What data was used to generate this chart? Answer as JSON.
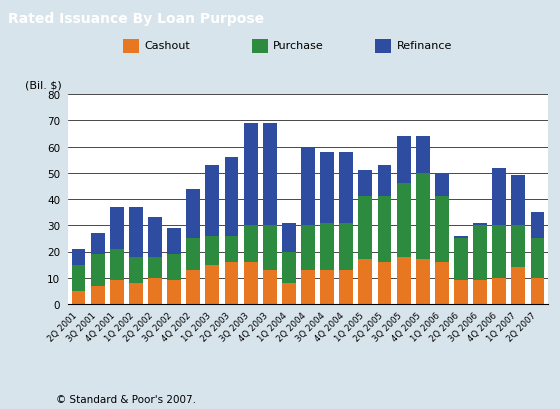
{
  "title": "Rated Issuance By Loan Purpose",
  "ylabel": "(Bil. $)",
  "footnote": "© Standard & Poor's 2007.",
  "categories": [
    "2Q 2001",
    "3Q 2001",
    "4Q 2001",
    "1Q 2002",
    "2Q 2002",
    "3Q 2002",
    "4Q 2002",
    "1Q 2003",
    "2Q 2003",
    "3Q 2003",
    "4Q 2003",
    "1Q 2004",
    "2Q 2004",
    "3Q 2004",
    "4Q 2004",
    "1Q 2005",
    "2Q 2005",
    "3Q 2005",
    "4Q 2005",
    "1Q 2006",
    "2Q 2006",
    "3Q 2006",
    "4Q 2006",
    "1Q 2007",
    "2Q 2007"
  ],
  "cashout": [
    5,
    7,
    9,
    8,
    10,
    9,
    13,
    15,
    16,
    16,
    13,
    8,
    13,
    13,
    13,
    17,
    16,
    18,
    17,
    16,
    9,
    9,
    10,
    14,
    10
  ],
  "purchase": [
    10,
    12,
    12,
    10,
    8,
    10,
    12,
    11,
    10,
    14,
    17,
    12,
    17,
    18,
    18,
    24,
    25,
    28,
    33,
    25,
    16,
    21,
    20,
    16,
    15
  ],
  "refinance": [
    6,
    8,
    16,
    19,
    15,
    10,
    19,
    27,
    30,
    39,
    39,
    11,
    30,
    27,
    27,
    10,
    12,
    18,
    14,
    9,
    1,
    1,
    22,
    19,
    10
  ],
  "cashout_color": "#E87722",
  "purchase_color": "#2D8B3F",
  "refinance_color": "#2E4DA0",
  "header_bg": "#5B7B8E",
  "header_text": "#FFFFFF",
  "outer_bg": "#D8E4EC",
  "inner_bg": "#FFFFFF",
  "legend_bg": "#F5F8FA",
  "ylim": [
    0,
    80
  ],
  "yticks": [
    0,
    10,
    20,
    30,
    40,
    50,
    60,
    70,
    80
  ]
}
